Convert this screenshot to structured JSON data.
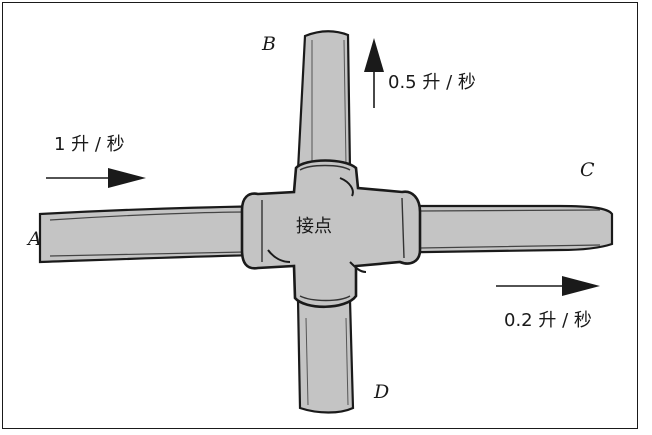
{
  "labels": {
    "a": "A",
    "b": "B",
    "c": "C",
    "d": "D"
  },
  "junction": "接点",
  "flows": {
    "in_a": "1 升 / 秒",
    "out_b": "0.5 升 / 秒",
    "out_c": "0.2 升 / 秒"
  },
  "colors": {
    "pipe": "#c4c4c4",
    "ink": "#1a1a1a"
  }
}
